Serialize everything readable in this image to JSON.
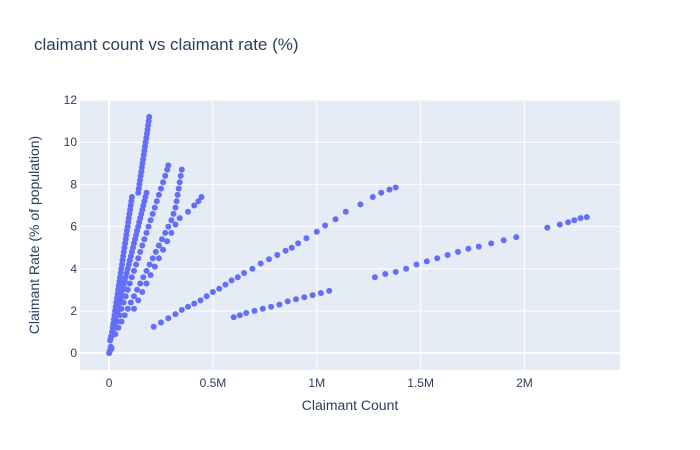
{
  "chart_data": {
    "type": "scatter",
    "title": "claimant count vs claimant rate (%)",
    "xlabel": "Claimant Count",
    "ylabel": "Claimant Rate (% of population)",
    "xlim": [
      -140000,
      2460000
    ],
    "ylim": [
      -0.8,
      12
    ],
    "x_ticks": [
      0,
      500000,
      1000000,
      1500000,
      2000000
    ],
    "x_tick_labels": [
      "0",
      "0.5M",
      "1M",
      "1.5M",
      "2M"
    ],
    "y_ticks": [
      0,
      2,
      4,
      6,
      8,
      10,
      12
    ],
    "y_tick_labels": [
      "0",
      "2",
      "4",
      "6",
      "8",
      "10",
      "12"
    ],
    "grid": true,
    "colors": {
      "marker": "#636efa",
      "plot_bg": "#e5ecf6",
      "grid": "#ffffff",
      "text": "#2a3f5f"
    },
    "series": [
      {
        "values": [
          [
            0,
            0
          ],
          [
            2000,
            0.05
          ],
          [
            4000,
            0.1
          ],
          [
            6000,
            0.15
          ],
          [
            8000,
            0.3
          ],
          [
            10000,
            0.2
          ],
          [
            12000,
            0.25
          ],
          [
            5000,
            0.6
          ],
          [
            8000,
            0.7
          ],
          [
            11000,
            0.8
          ],
          [
            14000,
            1.0
          ],
          [
            17000,
            1.2
          ],
          [
            20000,
            1.4
          ],
          [
            23000,
            1.6
          ],
          [
            26000,
            1.8
          ],
          [
            29000,
            2.0
          ],
          [
            32000,
            2.2
          ],
          [
            35000,
            2.4
          ],
          [
            38000,
            2.6
          ],
          [
            41000,
            2.8
          ],
          [
            44000,
            3.0
          ],
          [
            47000,
            3.2
          ],
          [
            50000,
            3.4
          ],
          [
            53000,
            3.6
          ],
          [
            56000,
            3.8
          ],
          [
            59000,
            4.0
          ],
          [
            62000,
            4.2
          ],
          [
            65000,
            4.4
          ],
          [
            68000,
            4.6
          ],
          [
            71000,
            4.8
          ],
          [
            74000,
            5.0
          ],
          [
            77000,
            5.2
          ],
          [
            80000,
            5.4
          ],
          [
            83000,
            5.6
          ],
          [
            86000,
            5.8
          ],
          [
            89000,
            6.0
          ],
          [
            92000,
            6.2
          ],
          [
            95000,
            6.4
          ],
          [
            98000,
            6.6
          ],
          [
            101000,
            6.8
          ],
          [
            104000,
            7.0
          ],
          [
            107000,
            7.2
          ],
          [
            110000,
            7.4
          ],
          [
            140000,
            7.6
          ],
          [
            143000,
            7.8
          ],
          [
            146000,
            8.0
          ],
          [
            149000,
            8.2
          ],
          [
            152000,
            8.4
          ],
          [
            155000,
            8.6
          ],
          [
            158000,
            8.8
          ],
          [
            161000,
            9.0
          ],
          [
            164000,
            9.2
          ],
          [
            167000,
            9.4
          ],
          [
            170000,
            9.6
          ],
          [
            173000,
            9.8
          ],
          [
            176000,
            10.0
          ],
          [
            179000,
            10.2
          ],
          [
            182000,
            10.4
          ],
          [
            185000,
            10.6
          ],
          [
            188000,
            10.8
          ],
          [
            191000,
            11.0
          ],
          [
            193000,
            11.2
          ],
          [
            10000,
            0.8
          ],
          [
            15000,
            1.0
          ],
          [
            20000,
            1.2
          ],
          [
            25000,
            1.4
          ],
          [
            30000,
            1.6
          ],
          [
            35000,
            1.8
          ],
          [
            40000,
            2.0
          ],
          [
            45000,
            2.2
          ],
          [
            50000,
            2.4
          ],
          [
            55000,
            2.6
          ],
          [
            60000,
            2.8
          ],
          [
            65000,
            3.0
          ],
          [
            70000,
            3.2
          ],
          [
            75000,
            3.4
          ],
          [
            80000,
            3.6
          ],
          [
            85000,
            3.8
          ],
          [
            90000,
            4.0
          ],
          [
            95000,
            4.2
          ],
          [
            100000,
            4.4
          ],
          [
            105000,
            4.6
          ],
          [
            110000,
            4.8
          ],
          [
            115000,
            5.0
          ],
          [
            120000,
            5.2
          ],
          [
            125000,
            5.4
          ],
          [
            130000,
            5.6
          ],
          [
            135000,
            5.8
          ],
          [
            140000,
            6.0
          ],
          [
            145000,
            6.2
          ],
          [
            150000,
            6.4
          ],
          [
            155000,
            6.6
          ],
          [
            160000,
            6.8
          ],
          [
            165000,
            7.0
          ],
          [
            170000,
            7.2
          ],
          [
            175000,
            7.4
          ],
          [
            180000,
            7.6
          ],
          [
            20000,
            0.9
          ],
          [
            30000,
            1.2
          ],
          [
            40000,
            1.5
          ],
          [
            50000,
            1.8
          ],
          [
            60000,
            2.1
          ],
          [
            70000,
            2.4
          ],
          [
            80000,
            2.7
          ],
          [
            90000,
            3.0
          ],
          [
            100000,
            3.3
          ],
          [
            110000,
            3.6
          ],
          [
            120000,
            3.9
          ],
          [
            130000,
            4.2
          ],
          [
            140000,
            4.5
          ],
          [
            150000,
            4.8
          ],
          [
            160000,
            5.1
          ],
          [
            170000,
            5.4
          ],
          [
            180000,
            5.7
          ],
          [
            190000,
            6.0
          ],
          [
            200000,
            6.3
          ],
          [
            210000,
            6.6
          ],
          [
            220000,
            6.9
          ],
          [
            230000,
            7.2
          ],
          [
            240000,
            7.5
          ],
          [
            250000,
            7.8
          ],
          [
            260000,
            8.1
          ],
          [
            270000,
            8.4
          ],
          [
            280000,
            8.7
          ],
          [
            285000,
            8.9
          ],
          [
            30000,
            0.9
          ],
          [
            45000,
            1.2
          ],
          [
            60000,
            1.5
          ],
          [
            75000,
            1.8
          ],
          [
            90000,
            2.1
          ],
          [
            105000,
            2.4
          ],
          [
            120000,
            2.7
          ],
          [
            135000,
            3.0
          ],
          [
            150000,
            3.3
          ],
          [
            165000,
            3.6
          ],
          [
            180000,
            3.9
          ],
          [
            195000,
            4.2
          ],
          [
            210000,
            4.5
          ],
          [
            225000,
            4.8
          ],
          [
            240000,
            5.1
          ],
          [
            255000,
            5.4
          ],
          [
            270000,
            5.7
          ],
          [
            285000,
            6.0
          ],
          [
            300000,
            6.3
          ],
          [
            310000,
            6.6
          ],
          [
            320000,
            6.9
          ],
          [
            325000,
            7.2
          ],
          [
            330000,
            7.5
          ],
          [
            335000,
            7.8
          ],
          [
            340000,
            8.1
          ],
          [
            345000,
            8.4
          ],
          [
            350000,
            8.7
          ],
          [
            120000,
            2.1
          ],
          [
            140000,
            2.5
          ],
          [
            160000,
            2.9
          ],
          [
            180000,
            3.3
          ],
          [
            200000,
            3.7
          ],
          [
            220000,
            4.1
          ],
          [
            240000,
            4.5
          ],
          [
            260000,
            4.9
          ],
          [
            280000,
            5.3
          ],
          [
            300000,
            5.7
          ],
          [
            320000,
            6.1
          ],
          [
            340000,
            6.4
          ],
          [
            380000,
            6.7
          ],
          [
            410000,
            7.0
          ],
          [
            430000,
            7.2
          ],
          [
            445000,
            7.4
          ],
          [
            215000,
            1.25
          ],
          [
            250000,
            1.45
          ],
          [
            285000,
            1.65
          ],
          [
            320000,
            1.85
          ],
          [
            350000,
            2.05
          ],
          [
            380000,
            2.2
          ],
          [
            410000,
            2.35
          ],
          [
            440000,
            2.5
          ],
          [
            470000,
            2.7
          ],
          [
            500000,
            2.9
          ],
          [
            530000,
            3.05
          ],
          [
            560000,
            3.25
          ],
          [
            590000,
            3.45
          ],
          [
            620000,
            3.6
          ],
          [
            650000,
            3.8
          ],
          [
            690000,
            4.0
          ],
          [
            730000,
            4.25
          ],
          [
            770000,
            4.45
          ],
          [
            810000,
            4.65
          ],
          [
            850000,
            4.85
          ],
          [
            880000,
            5.0
          ],
          [
            910000,
            5.2
          ],
          [
            950000,
            5.45
          ],
          [
            1000000,
            5.75
          ],
          [
            1040000,
            6.05
          ],
          [
            1090000,
            6.35
          ],
          [
            1140000,
            6.7
          ],
          [
            1210000,
            7.05
          ],
          [
            1270000,
            7.4
          ],
          [
            1310000,
            7.6
          ],
          [
            1350000,
            7.75
          ],
          [
            1380000,
            7.85
          ],
          [
            600000,
            1.7
          ],
          [
            630000,
            1.8
          ],
          [
            660000,
            1.9
          ],
          [
            700000,
            2.0
          ],
          [
            740000,
            2.1
          ],
          [
            780000,
            2.2
          ],
          [
            820000,
            2.3
          ],
          [
            860000,
            2.45
          ],
          [
            900000,
            2.55
          ],
          [
            940000,
            2.65
          ],
          [
            980000,
            2.75
          ],
          [
            1020000,
            2.85
          ],
          [
            1060000,
            2.95
          ],
          [
            1280000,
            3.6
          ],
          [
            1330000,
            3.75
          ],
          [
            1380000,
            3.85
          ],
          [
            1430000,
            4.0
          ],
          [
            1480000,
            4.2
          ],
          [
            1530000,
            4.35
          ],
          [
            1580000,
            4.5
          ],
          [
            1630000,
            4.65
          ],
          [
            1680000,
            4.8
          ],
          [
            1730000,
            4.95
          ],
          [
            1780000,
            5.05
          ],
          [
            1840000,
            5.2
          ],
          [
            1900000,
            5.35
          ],
          [
            1960000,
            5.5
          ],
          [
            2110000,
            5.95
          ],
          [
            2170000,
            6.1
          ],
          [
            2210000,
            6.2
          ],
          [
            2240000,
            6.3
          ],
          [
            2270000,
            6.4
          ],
          [
            2300000,
            6.45
          ]
        ]
      }
    ]
  }
}
